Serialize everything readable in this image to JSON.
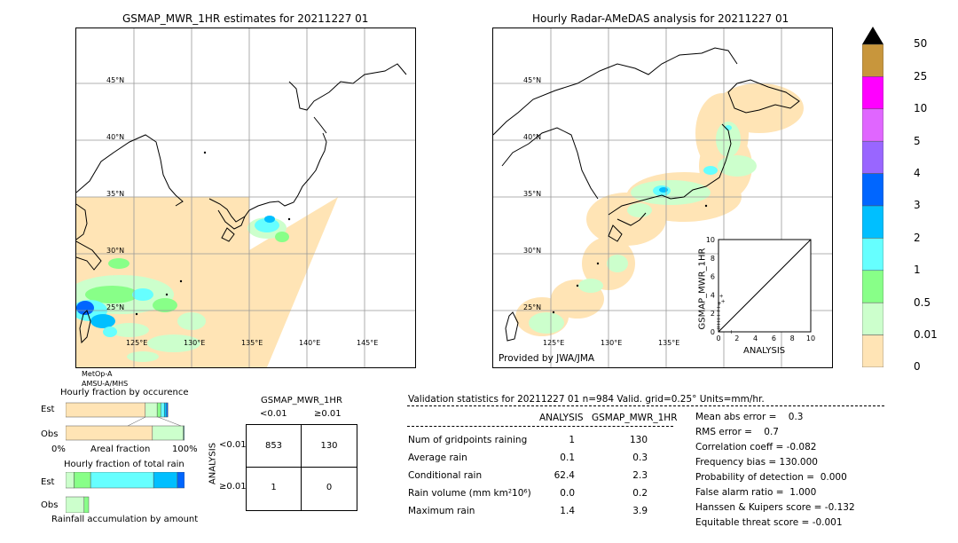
{
  "left_map": {
    "title": "GSMAP_MWR_1HR estimates for 20211227 01",
    "lat_labels": [
      "45°N",
      "40°N",
      "35°N",
      "30°N",
      "25°N"
    ],
    "lon_labels": [
      "125°E",
      "130°E",
      "135°E",
      "140°E",
      "145°E"
    ],
    "sensor_lines": [
      "MetOp-A",
      "AMSU-A/MHS"
    ]
  },
  "right_map": {
    "title": "Hourly Radar-AMeDAS analysis for 20211227 01",
    "lat_labels": [
      "45°N",
      "40°N",
      "35°N",
      "30°N",
      "25°N"
    ],
    "lon_labels": [
      "125°E",
      "130°E",
      "135°E"
    ],
    "credit": "Provided by JWA/JMA"
  },
  "colorbar": {
    "labels": [
      "50",
      "25",
      "10",
      "5",
      "4",
      "3",
      "2",
      "1",
      "0.5",
      "0.01",
      "0"
    ],
    "colors": [
      "#c8963c",
      "#ff00ff",
      "#e066ff",
      "#9966ff",
      "#0066ff",
      "#00bfff",
      "#66ffff",
      "#88ff88",
      "#ccffcc",
      "#ffe4b5"
    ]
  },
  "scatter": {
    "xlabel": "ANALYSIS",
    "ylabel": "GSMAP_MWR_1HR",
    "ticks": [
      "0",
      "2",
      "4",
      "6",
      "8",
      "10"
    ]
  },
  "occurrence": {
    "title": "Hourly fraction by occurence",
    "est_label": "Est",
    "obs_label": "Obs",
    "axis_left": "0%",
    "axis_mid": "Areal fraction",
    "axis_right": "100%"
  },
  "total_rain": {
    "title": "Hourly fraction of total rain",
    "est_label": "Est",
    "obs_label": "Obs",
    "footer": "Rainfall accumulation by amount"
  },
  "contingency": {
    "title": "GSMAP_MWR_1HR",
    "col_headers": [
      "<0.01",
      "≥0.01"
    ],
    "row_headers": [
      "<0.01",
      "≥0.01"
    ],
    "side_label": "ANALYSIS",
    "cells": [
      "853",
      "130",
      "1",
      "0"
    ]
  },
  "validation": {
    "header": "Validation statistics for 20211227 01  n=984 Valid. grid=0.25° Units=mm/hr.",
    "col_analysis": "ANALYSIS",
    "col_gsmap": "GSMAP_MWR_1HR",
    "rows": [
      {
        "label": "Num of gridpoints raining",
        "analysis": "1",
        "gsmap": "130"
      },
      {
        "label": "Average rain",
        "analysis": "0.1",
        "gsmap": "0.3"
      },
      {
        "label": "Conditional rain",
        "analysis": "62.4",
        "gsmap": "2.3"
      },
      {
        "label": "Rain volume (mm km²10⁶)",
        "analysis": "0.0",
        "gsmap": "0.2"
      },
      {
        "label": "Maximum rain",
        "analysis": "1.4",
        "gsmap": "3.9"
      }
    ],
    "scores": [
      "Mean abs error =    0.3",
      "RMS error =    0.7",
      "Correlation coeff = -0.082",
      "Frequency bias = 130.000",
      "Probability of detection =  0.000",
      "False alarm ratio =  1.000",
      "Hanssen & Kuipers score = -0.132",
      "Equitable threat score = -0.001"
    ]
  },
  "chart_data": [
    {
      "type": "scatter",
      "xlabel": "ANALYSIS",
      "ylabel": "GSMAP_MWR_1HR",
      "xlim": [
        0,
        10
      ],
      "ylim": [
        0,
        10
      ],
      "points": [
        [
          0,
          0.3
        ],
        [
          0,
          0.5
        ],
        [
          0,
          0.8
        ],
        [
          0,
          1.1
        ],
        [
          0,
          1.4
        ],
        [
          0,
          1.8
        ],
        [
          0,
          2.2
        ],
        [
          0,
          2.6
        ],
        [
          0.1,
          3.1
        ],
        [
          0.3,
          3.9
        ],
        [
          0.5,
          3.3
        ],
        [
          1.4,
          0.0
        ]
      ]
    },
    {
      "type": "bar",
      "title": "Hourly fraction by occurence",
      "categories": [
        "Est",
        "Obs"
      ],
      "xlabel": "Areal fraction",
      "xlim": [
        0,
        100
      ],
      "series": [
        {
          "name": "0",
          "values": [
            67,
            73
          ]
        },
        {
          "name": "0.01",
          "values": [
            10,
            26
          ]
        },
        {
          "name": "0.5",
          "values": [
            3,
            0.5
          ]
        },
        {
          "name": "1",
          "values": [
            3,
            0.5
          ]
        },
        {
          "name": "2",
          "values": [
            2,
            0
          ]
        },
        {
          "name": "3",
          "values": [
            1,
            0
          ]
        }
      ]
    },
    {
      "type": "bar",
      "title": "Hourly fraction of total rain",
      "categories": [
        "Est",
        "Obs"
      ],
      "series": [
        {
          "name": "0.01",
          "values": [
            7,
            80
          ]
        },
        {
          "name": "0.5",
          "values": [
            14,
            20
          ]
        },
        {
          "name": "1",
          "values": [
            53,
            0
          ]
        },
        {
          "name": "2",
          "values": [
            20,
            0
          ]
        },
        {
          "name": "3",
          "values": [
            6,
            0
          ]
        }
      ]
    },
    {
      "type": "table",
      "title": "GSMAP_MWR_1HR",
      "rows": [
        [
          "853",
          "130"
        ],
        [
          "1",
          "0"
        ]
      ]
    }
  ]
}
